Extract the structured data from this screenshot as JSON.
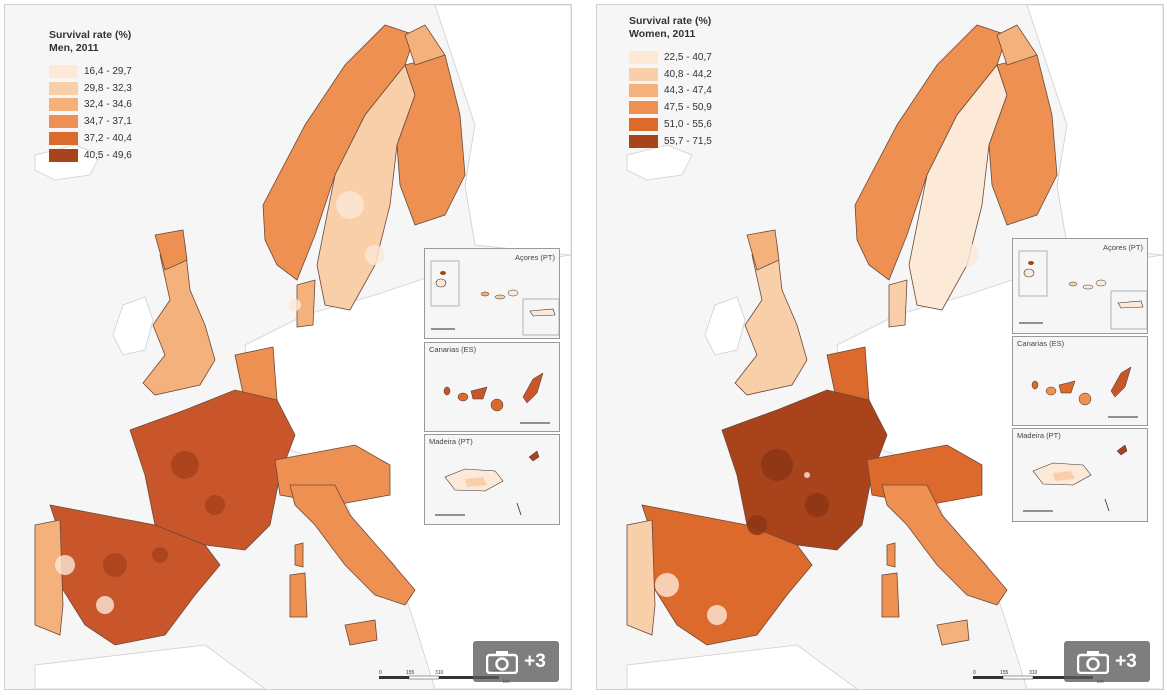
{
  "maps": [
    {
      "title_line1": "Survival rate (%)",
      "title_line2": "Men, 2011",
      "legend": [
        {
          "label": "16,4 - 29,7",
          "color": "#fde9d8"
        },
        {
          "label": "29,8 - 32,3",
          "color": "#f9cfa9"
        },
        {
          "label": "32,4 - 34,6",
          "color": "#f4b17c"
        },
        {
          "label": "34,7 - 37,1",
          "color": "#ee9052"
        },
        {
          "label": "37,2 - 40,4",
          "color": "#dc6a2c"
        },
        {
          "label": "40,5 - 49,6",
          "color": "#a8431c"
        }
      ]
    },
    {
      "title_line1": "Survival rate (%)",
      "title_line2": "Women, 2011",
      "legend": [
        {
          "label": "22,5 - 40,7",
          "color": "#fde9d8"
        },
        {
          "label": "40,8 - 44,2",
          "color": "#f9cfa9"
        },
        {
          "label": "44,3 - 47,4",
          "color": "#f4b17c"
        },
        {
          "label": "47,5 - 50,9",
          "color": "#ee9052"
        },
        {
          "label": "51,0 - 55,6",
          "color": "#dc6a2c"
        },
        {
          "label": "55,7 - 71,5",
          "color": "#a8431c"
        }
      ]
    }
  ],
  "insets": {
    "acores": "Açores (PT)",
    "canarias": "Canarias (ES)",
    "madeira": "Madeira (PT)"
  },
  "scale": {
    "t0": "0",
    "t1": "155",
    "t2": "310",
    "t3": "620",
    "unit": "km"
  },
  "photo_button": {
    "count": "+3",
    "icon": "camera-icon"
  },
  "colors": {
    "sea": "#f6f6f6",
    "non_data_land": "#ffffff",
    "border": "#555555"
  }
}
